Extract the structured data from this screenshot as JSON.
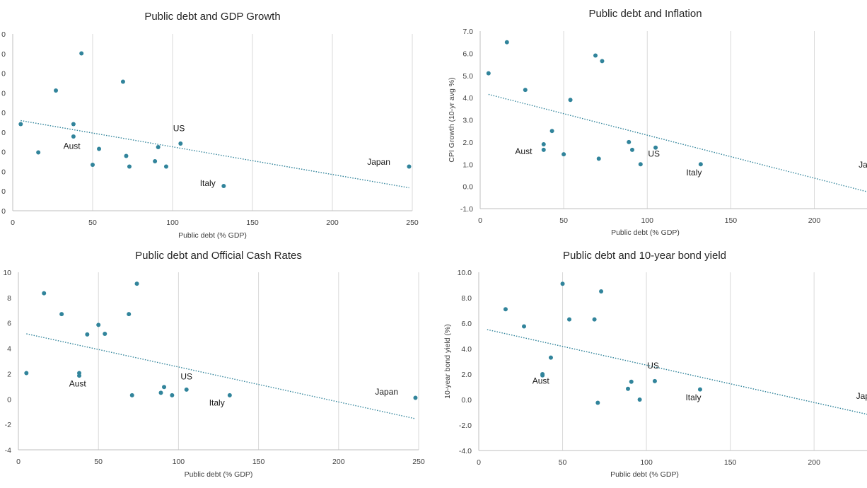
{
  "chart_data": [
    {
      "type": "scatter",
      "title": "Public debt and GDP Growth",
      "xlabel": "Public debt (% GDP)",
      "ylabel": "",
      "xlim": [
        0,
        250
      ],
      "x_ticks": [
        "0",
        "50",
        "100",
        "150",
        "200",
        "250"
      ],
      "ylim": [
        0,
        10
      ],
      "y_ticks": [
        "0",
        "0",
        "0",
        "0",
        "0",
        "0",
        "0",
        "0",
        "0",
        "0"
      ],
      "grid": "vertical",
      "marker_color": "#31849b",
      "trendline_color": "#31849b",
      "points": [
        {
          "x": 5,
          "y": 4.9
        },
        {
          "x": 16,
          "y": 3.3
        },
        {
          "x": 27,
          "y": 6.8
        },
        {
          "x": 38,
          "y": 4.9
        },
        {
          "x": 38,
          "y": 4.2
        },
        {
          "x": 43,
          "y": 8.9
        },
        {
          "x": 50,
          "y": 2.6
        },
        {
          "x": 54,
          "y": 3.5
        },
        {
          "x": 69,
          "y": 7.3
        },
        {
          "x": 71,
          "y": 3.1
        },
        {
          "x": 73,
          "y": 2.5
        },
        {
          "x": 89,
          "y": 2.8
        },
        {
          "x": 91,
          "y": 3.6
        },
        {
          "x": 96,
          "y": 2.5
        },
        {
          "x": 105,
          "y": 3.8
        },
        {
          "x": 132,
          "y": 1.4
        },
        {
          "x": 248,
          "y": 2.5
        }
      ],
      "trendline": [
        {
          "x": 5,
          "y": 5.1
        },
        {
          "x": 248,
          "y": 1.3
        }
      ],
      "annotations": [
        {
          "text": "Aust",
          "x": 37,
          "y": 3.5
        },
        {
          "text": "US",
          "x": 104,
          "y": 4.5
        },
        {
          "text": "Italy",
          "x": 122,
          "y": 1.4
        },
        {
          "text": "Japan",
          "x": 229,
          "y": 2.6
        }
      ]
    },
    {
      "type": "scatter",
      "title": "Public debt and Inflation",
      "xlabel": "Public debt (% GDP)",
      "ylabel": "CPI Growth (10-yr avg %)",
      "xlim": [
        0,
        240
      ],
      "x_ticks": [
        "0",
        "50",
        "100",
        "150",
        "200"
      ],
      "ylim": [
        -1,
        7
      ],
      "y_ticks": [
        "-1.0",
        "0.0",
        "1.0",
        "2.0",
        "3.0",
        "4.0",
        "5.0",
        "6.0",
        "7.0"
      ],
      "grid": "vertical",
      "marker_color": "#31849b",
      "trendline_color": "#31849b",
      "points": [
        {
          "x": 5,
          "y": 5.1
        },
        {
          "x": 16,
          "y": 6.5
        },
        {
          "x": 27,
          "y": 4.35
        },
        {
          "x": 38,
          "y": 1.9
        },
        {
          "x": 38,
          "y": 1.65
        },
        {
          "x": 43,
          "y": 2.5
        },
        {
          "x": 50,
          "y": 1.45
        },
        {
          "x": 54,
          "y": 3.9
        },
        {
          "x": 69,
          "y": 5.9
        },
        {
          "x": 71,
          "y": 1.25
        },
        {
          "x": 73,
          "y": 5.65
        },
        {
          "x": 89,
          "y": 2.0
        },
        {
          "x": 91,
          "y": 1.65
        },
        {
          "x": 96,
          "y": 1.0
        },
        {
          "x": 105,
          "y": 1.75
        },
        {
          "x": 132,
          "y": 1.0
        }
      ],
      "trendline": [
        {
          "x": 5,
          "y": 4.15
        },
        {
          "x": 240,
          "y": -0.4
        }
      ],
      "annotations": [
        {
          "text": "Aust",
          "x": 26,
          "y": 1.45
        },
        {
          "text": "US",
          "x": 104,
          "y": 1.35
        },
        {
          "text": "Italy",
          "x": 128,
          "y": 0.5
        },
        {
          "text": "Japa",
          "x": 232,
          "y": 0.85
        }
      ]
    },
    {
      "type": "scatter",
      "title": "Public debt and Official Cash Rates",
      "xlabel": "Public debt (% GDP)",
      "ylabel": "",
      "xlim": [
        0,
        250
      ],
      "x_ticks": [
        "0",
        "50",
        "100",
        "150",
        "200",
        "250"
      ],
      "ylim": [
        -4,
        10
      ],
      "y_ticks": [
        "-4",
        "-2",
        "0",
        "2",
        "4",
        "6",
        "8",
        "10"
      ],
      "grid": "vertical",
      "marker_color": "#31849b",
      "trendline_color": "#31849b",
      "points": [
        {
          "x": 5,
          "y": 2.05
        },
        {
          "x": 16,
          "y": 8.35
        },
        {
          "x": 27,
          "y": 6.7
        },
        {
          "x": 38,
          "y": 2.05
        },
        {
          "x": 38,
          "y": 1.85
        },
        {
          "x": 43,
          "y": 5.1
        },
        {
          "x": 50,
          "y": 5.85
        },
        {
          "x": 54,
          "y": 5.15
        },
        {
          "x": 69,
          "y": 6.7
        },
        {
          "x": 71,
          "y": 0.3
        },
        {
          "x": 74,
          "y": 9.1
        },
        {
          "x": 89,
          "y": 0.5
        },
        {
          "x": 91,
          "y": 0.95
        },
        {
          "x": 96,
          "y": 0.3
        },
        {
          "x": 105,
          "y": 0.75
        },
        {
          "x": 132,
          "y": 0.3
        },
        {
          "x": 248,
          "y": 0.1
        }
      ],
      "trendline": [
        {
          "x": 5,
          "y": 5.15
        },
        {
          "x": 248,
          "y": -1.55
        }
      ],
      "annotations": [
        {
          "text": "Aust",
          "x": 37,
          "y": 1.0
        },
        {
          "text": "US",
          "x": 105,
          "y": 1.55
        },
        {
          "text": "Italy",
          "x": 124,
          "y": -0.5
        },
        {
          "text": "Japan",
          "x": 230,
          "y": 0.35
        }
      ]
    },
    {
      "type": "scatter",
      "title": "Public debt and 10-year bond yield",
      "xlabel": "Public debt (% GDP)",
      "ylabel": "10-year bond yield (%)",
      "xlim": [
        0,
        240
      ],
      "x_ticks": [
        "0",
        "50",
        "100",
        "150",
        "200"
      ],
      "ylim": [
        -4,
        10
      ],
      "y_ticks": [
        "-4.0",
        "-2.0",
        "0.0",
        "2.0",
        "4.0",
        "6.0",
        "8.0",
        "10.0"
      ],
      "grid": "vertical",
      "marker_color": "#31849b",
      "trendline_color": "#31849b",
      "points": [
        {
          "x": 16,
          "y": 7.1
        },
        {
          "x": 27,
          "y": 5.75
        },
        {
          "x": 38,
          "y": 2.0
        },
        {
          "x": 38,
          "y": 1.9
        },
        {
          "x": 43,
          "y": 3.3
        },
        {
          "x": 50,
          "y": 9.1
        },
        {
          "x": 54,
          "y": 6.3
        },
        {
          "x": 69,
          "y": 6.3
        },
        {
          "x": 71,
          "y": -0.25
        },
        {
          "x": 73,
          "y": 8.5
        },
        {
          "x": 89,
          "y": 0.85
        },
        {
          "x": 91,
          "y": 1.4
        },
        {
          "x": 96,
          "y": 0.0
        },
        {
          "x": 105,
          "y": 1.45
        },
        {
          "x": 132,
          "y": 0.8
        }
      ],
      "trendline": [
        {
          "x": 5,
          "y": 5.5
        },
        {
          "x": 240,
          "y": -1.4
        }
      ],
      "annotations": [
        {
          "text": "Aust",
          "x": 37,
          "y": 1.25
        },
        {
          "text": "US",
          "x": 104,
          "y": 2.45
        },
        {
          "text": "Italy",
          "x": 128,
          "y": -0.05
        },
        {
          "text": "Japan",
          "x": 232,
          "y": 0.05
        }
      ]
    }
  ]
}
